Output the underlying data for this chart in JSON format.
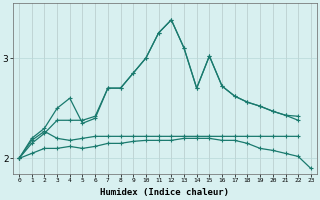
{
  "xlabel": "Humidex (Indice chaleur)",
  "x": [
    0,
    1,
    2,
    3,
    4,
    5,
    6,
    7,
    8,
    9,
    10,
    11,
    12,
    13,
    14,
    15,
    16,
    17,
    18,
    19,
    20,
    21,
    22,
    23
  ],
  "line1": [
    2.0,
    2.2,
    2.3,
    2.5,
    2.6,
    2.35,
    2.4,
    2.7,
    2.7,
    2.85,
    3.0,
    3.25,
    3.38,
    3.1,
    2.7,
    3.02,
    2.72,
    2.62,
    2.56,
    2.52,
    2.47,
    2.43,
    2.42,
    null
  ],
  "line2": [
    2.0,
    2.15,
    2.25,
    2.38,
    2.38,
    2.38,
    2.42,
    2.7,
    2.7,
    2.85,
    3.0,
    3.25,
    3.38,
    3.1,
    2.7,
    3.02,
    2.72,
    2.62,
    2.56,
    2.52,
    2.47,
    2.43,
    2.38,
    null
  ],
  "line3": [
    2.0,
    2.18,
    2.27,
    2.2,
    2.18,
    2.2,
    2.22,
    2.22,
    2.22,
    2.22,
    2.22,
    2.22,
    2.22,
    2.22,
    2.22,
    2.22,
    2.22,
    2.22,
    2.22,
    2.22,
    2.22,
    2.22,
    2.22,
    null
  ],
  "line4": [
    2.0,
    2.05,
    2.1,
    2.1,
    2.12,
    2.1,
    2.12,
    2.15,
    2.15,
    2.17,
    2.18,
    2.18,
    2.18,
    2.2,
    2.2,
    2.2,
    2.18,
    2.18,
    2.15,
    2.1,
    2.08,
    2.05,
    2.02,
    1.9
  ],
  "color": "#1a7a6e",
  "bg_color": "#d8f0f0",
  "grid_color": "#b8d8d8",
  "ylim": [
    1.85,
    3.55
  ],
  "yticks": [
    2,
    3
  ],
  "xlim": [
    -0.5,
    23.5
  ]
}
